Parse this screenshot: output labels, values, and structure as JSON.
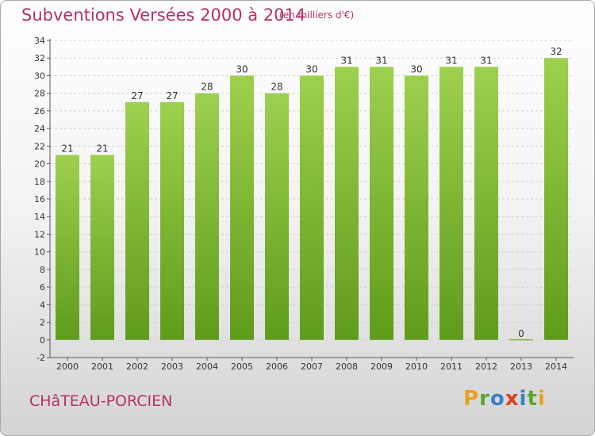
{
  "header": {
    "title": "Subventions Versées 2000 à 2014",
    "subtitle": "(en milliers d'€)"
  },
  "footer": {
    "commune": "CHâTEAU-PORCIEN",
    "logo_letters": [
      "P",
      "r",
      "o",
      "x",
      "i",
      "t",
      "i"
    ],
    "logo_colors": [
      "#e8a020",
      "#5aa830",
      "#3a7fc8",
      "#d84020",
      "#3a7fc8",
      "#5aa830",
      "#e8a020"
    ]
  },
  "colors": {
    "bar_top": "#9dd04e",
    "bar_bottom": "#5f9c1a",
    "grid": "#d0d0d0",
    "title": "#b5306a"
  },
  "chart_data": {
    "type": "bar",
    "categories": [
      "2000",
      "2001",
      "2002",
      "2003",
      "2004",
      "2005",
      "2006",
      "2007",
      "2008",
      "2009",
      "2010",
      "2011",
      "2012",
      "2013",
      "2014"
    ],
    "values": [
      21,
      21,
      27,
      27,
      28,
      30,
      28,
      30,
      31,
      31,
      30,
      31,
      31,
      0,
      32
    ],
    "value_labels": [
      "21",
      "21",
      "27",
      "27",
      "28",
      "30",
      "28",
      "30",
      "31",
      "31",
      "30",
      "31",
      "31",
      "0",
      "32"
    ],
    "ylim": [
      -2,
      34
    ],
    "yticks": [
      "-2",
      "0",
      "2",
      "4",
      "6",
      "8",
      "10",
      "12",
      "14",
      "16",
      "18",
      "20",
      "22",
      "24",
      "26",
      "28",
      "30",
      "32",
      "34"
    ],
    "grid": true
  }
}
